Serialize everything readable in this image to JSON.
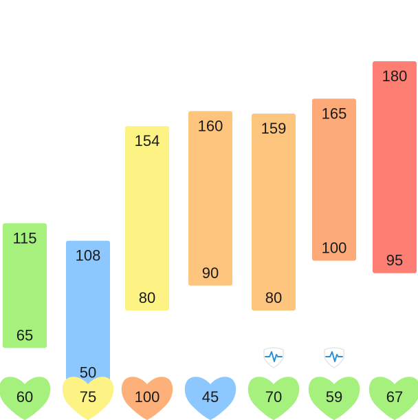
{
  "chart_data": {
    "type": "range-bar",
    "title": "",
    "xlabel": "",
    "ylabel": "",
    "blood_pressure": [
      {
        "systolic": 115,
        "diastolic": 65,
        "color": "#a6f07e"
      },
      {
        "systolic": 108,
        "diastolic": 50,
        "color": "#8cc8fd"
      },
      {
        "systolic": 154,
        "diastolic": 80,
        "color": "#fdf284"
      },
      {
        "systolic": 160,
        "diastolic": 90,
        "color": "#fdc47e"
      },
      {
        "systolic": 159,
        "diastolic": 80,
        "color": "#fdc47e"
      },
      {
        "systolic": 165,
        "diastolic": 100,
        "color": "#fdaa78"
      },
      {
        "systolic": 180,
        "diastolic": 95,
        "color": "#fd7f74"
      }
    ],
    "heart_rate": [
      {
        "value": 60,
        "color": "#a6f07e",
        "irregular_marker": false
      },
      {
        "value": 75,
        "color": "#fdf284",
        "irregular_marker": false
      },
      {
        "value": 100,
        "color": "#fdb07a",
        "irregular_marker": false
      },
      {
        "value": 45,
        "color": "#8cc8fd",
        "irregular_marker": false
      },
      {
        "value": 70,
        "color": "#a6f07e",
        "irregular_marker": true
      },
      {
        "value": 59,
        "color": "#a6f07e",
        "irregular_marker": true
      },
      {
        "value": 67,
        "color": "#a6f07e",
        "irregular_marker": false
      }
    ],
    "marker_icon": "pulse-shield-icon",
    "marker_color": "#2a8fd4"
  }
}
